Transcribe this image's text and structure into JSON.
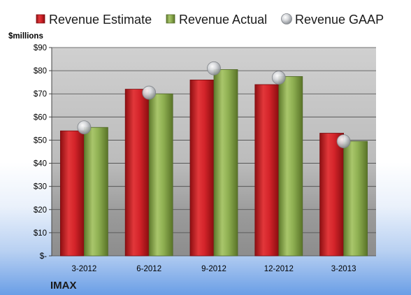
{
  "chart_data": {
    "type": "bar",
    "categories": [
      "3-2012",
      "6-2012",
      "9-2012",
      "12-2012",
      "3-2013"
    ],
    "series": [
      {
        "name": "Revenue Estimate",
        "type": "bar",
        "values": [
          54,
          72,
          76,
          74,
          53
        ],
        "color": "#cc1f24"
      },
      {
        "name": "Revenue Actual",
        "type": "bar",
        "values": [
          55.5,
          70,
          80.5,
          77.5,
          49.5
        ],
        "color": "#8bad4f"
      },
      {
        "name": "Revenue GAAP",
        "type": "scatter",
        "values": [
          55.5,
          70.5,
          81,
          77,
          49.5
        ],
        "color": "#c9ccd1"
      }
    ],
    "ylim": [
      0,
      90
    ],
    "yticks": [
      0,
      10,
      20,
      30,
      40,
      50,
      60,
      70,
      80,
      90
    ],
    "ytick_labels": [
      "$-",
      "$10",
      "$20",
      "$30",
      "$40",
      "$50",
      "$60",
      "$70",
      "$80",
      "$90"
    ],
    "ylabel": "$millions",
    "company": "IMAX",
    "legend_position": "top",
    "grid": true
  }
}
